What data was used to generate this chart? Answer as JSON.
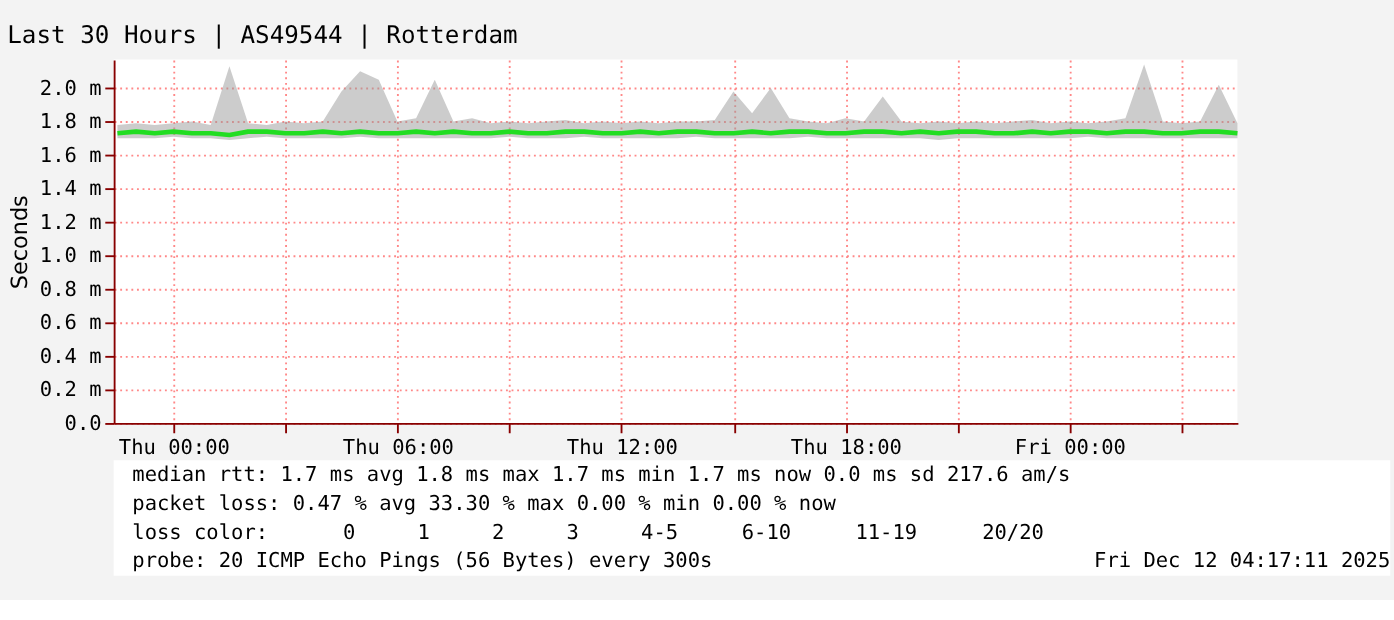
{
  "chart_data": {
    "type": "line",
    "title": "Last 30 Hours | AS49544 | Rotterdam",
    "ylabel": "Seconds",
    "x": [
      "2025-12-10T22:30",
      "2025-12-10T23:00",
      "2025-12-10T23:30",
      "2025-12-11T00:00",
      "2025-12-11T00:30",
      "2025-12-11T01:00",
      "2025-12-11T01:30",
      "2025-12-11T02:00",
      "2025-12-11T02:30",
      "2025-12-11T03:00",
      "2025-12-11T03:30",
      "2025-12-11T04:00",
      "2025-12-11T04:30",
      "2025-12-11T05:00",
      "2025-12-11T05:30",
      "2025-12-11T06:00",
      "2025-12-11T06:30",
      "2025-12-11T07:00",
      "2025-12-11T07:30",
      "2025-12-11T08:00",
      "2025-12-11T08:30",
      "2025-12-11T09:00",
      "2025-12-11T09:30",
      "2025-12-11T10:00",
      "2025-12-11T10:30",
      "2025-12-11T11:00",
      "2025-12-11T11:30",
      "2025-12-11T12:00",
      "2025-12-11T12:30",
      "2025-12-11T13:00",
      "2025-12-11T13:30",
      "2025-12-11T14:00",
      "2025-12-11T14:30",
      "2025-12-11T15:00",
      "2025-12-11T15:30",
      "2025-12-11T16:00",
      "2025-12-11T16:30",
      "2025-12-11T17:00",
      "2025-12-11T17:30",
      "2025-12-11T18:00",
      "2025-12-11T18:30",
      "2025-12-11T19:00",
      "2025-12-11T19:30",
      "2025-12-11T20:00",
      "2025-12-11T20:30",
      "2025-12-11T21:00",
      "2025-12-11T21:30",
      "2025-12-11T22:00",
      "2025-12-11T22:30",
      "2025-12-11T23:00",
      "2025-12-11T23:30",
      "2025-12-12T00:00",
      "2025-12-12T00:30",
      "2025-12-12T01:00",
      "2025-12-12T01:30",
      "2025-12-12T02:00",
      "2025-12-12T02:30",
      "2025-12-12T03:00",
      "2025-12-12T03:30",
      "2025-12-12T04:00",
      "2025-12-12T04:30"
    ],
    "series": [
      {
        "color": "#22dd22",
        "values": [
          1.73,
          1.74,
          1.73,
          1.74,
          1.73,
          1.73,
          1.72,
          1.74,
          1.74,
          1.73,
          1.73,
          1.74,
          1.73,
          1.74,
          1.73,
          1.73,
          1.74,
          1.73,
          1.74,
          1.73,
          1.73,
          1.74,
          1.73,
          1.73,
          1.74,
          1.74,
          1.73,
          1.73,
          1.74,
          1.73,
          1.74,
          1.74,
          1.73,
          1.73,
          1.74,
          1.73,
          1.74,
          1.74,
          1.73,
          1.73,
          1.74,
          1.74,
          1.73,
          1.74,
          1.73,
          1.74,
          1.74,
          1.73,
          1.73,
          1.74,
          1.73,
          1.74,
          1.74,
          1.73,
          1.74,
          1.74,
          1.73,
          1.73,
          1.74,
          1.74,
          1.73
        ],
        "lower": [
          1.7,
          1.7,
          1.7,
          1.71,
          1.7,
          1.7,
          1.69,
          1.7,
          1.71,
          1.7,
          1.7,
          1.7,
          1.7,
          1.71,
          1.7,
          1.7,
          1.7,
          1.7,
          1.7,
          1.7,
          1.7,
          1.71,
          1.7,
          1.7,
          1.7,
          1.71,
          1.7,
          1.7,
          1.7,
          1.7,
          1.7,
          1.71,
          1.7,
          1.7,
          1.7,
          1.7,
          1.7,
          1.71,
          1.7,
          1.7,
          1.7,
          1.7,
          1.7,
          1.7,
          1.69,
          1.7,
          1.7,
          1.7,
          1.7,
          1.7,
          1.7,
          1.7,
          1.71,
          1.7,
          1.7,
          1.7,
          1.7,
          1.7,
          1.7,
          1.7,
          1.7
        ],
        "upper": [
          1.78,
          1.79,
          1.78,
          1.79,
          1.8,
          1.78,
          2.13,
          1.79,
          1.78,
          1.8,
          1.79,
          1.8,
          1.98,
          2.1,
          2.05,
          1.8,
          1.82,
          2.05,
          1.8,
          1.82,
          1.79,
          1.8,
          1.79,
          1.8,
          1.81,
          1.79,
          1.8,
          1.79,
          1.8,
          1.79,
          1.8,
          1.8,
          1.81,
          1.98,
          1.85,
          2.0,
          1.82,
          1.8,
          1.79,
          1.82,
          1.8,
          1.95,
          1.8,
          1.79,
          1.8,
          1.79,
          1.8,
          1.79,
          1.8,
          1.81,
          1.79,
          1.8,
          1.79,
          1.8,
          1.82,
          2.14,
          1.8,
          1.79,
          1.8,
          2.02,
          1.79
        ]
      }
    ],
    "xlim": [
      "2025-12-10T22:24",
      "2025-12-12T04:30"
    ],
    "xticks": [
      {
        "value": "2025-12-11T00:00",
        "label": "Thu 00:00"
      },
      {
        "value": "2025-12-11T03:00",
        "label": null
      },
      {
        "value": "2025-12-11T06:00",
        "label": "Thu 06:00"
      },
      {
        "value": "2025-12-11T09:00",
        "label": null
      },
      {
        "value": "2025-12-11T12:00",
        "label": "Thu 12:00"
      },
      {
        "value": "2025-12-11T15:00",
        "label": null
      },
      {
        "value": "2025-12-11T18:00",
        "label": "Thu 18:00"
      },
      {
        "value": "2025-12-11T21:00",
        "label": null
      },
      {
        "value": "2025-12-12T00:00",
        "label": "Fri 00:00"
      },
      {
        "value": "2025-12-12T03:00",
        "label": null
      }
    ],
    "ylim": [
      0,
      2.17
    ],
    "yticks": [
      {
        "value": 0,
        "label": "0.0"
      },
      {
        "value": 0.2,
        "label": "0.2 m"
      },
      {
        "value": 0.4,
        "label": "0.4 m"
      },
      {
        "value": 0.6,
        "label": "0.6 m"
      },
      {
        "value": 0.8,
        "label": "0.8 m"
      },
      {
        "value": 1.0,
        "label": "1.0 m"
      },
      {
        "value": 1.2,
        "label": "1.2 m"
      },
      {
        "value": 1.4,
        "label": "1.4 m"
      },
      {
        "value": 1.6,
        "label": "1.6 m"
      },
      {
        "value": 1.8,
        "label": "1.8 m"
      },
      {
        "value": 2.0,
        "label": "2.0 m"
      }
    ],
    "grid": true,
    "marker": "none",
    "line_style": "solid",
    "annotations": [
      "median rtt:  1.7 ms avg   1.8 ms max   1.7 ms min   1.7 ms now   0.0 ms sd   217.6   am/s",
      "packet loss: 0.47 % avg   33.30 % max   0.00 % min   0.00 % now",
      "loss color:",
      "0",
      "1",
      "2",
      "3",
      "4-5",
      "6-10",
      "11-19",
      "20/20",
      "probe:       20 ICMP Echo Pings (56 Bytes) every 300s",
      "Fri Dec 12 04:17:11 2025"
    ]
  }
}
